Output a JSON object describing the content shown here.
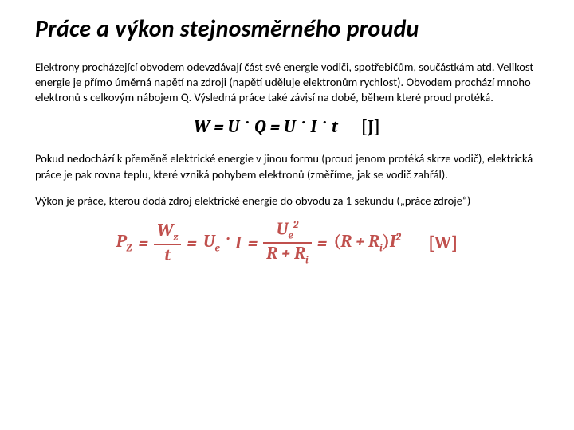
{
  "title": "Práce a výkon stejnosměrného proudu",
  "p1": "Elektrony procházející obvodem odevzdávají část své energie vodiči, spotřebičům, součástkám atd. Velikost energie je přímo úměrná napětí na zdroji (napětí uděluje elektronům rychlost). Obvodem prochází mnoho elektronů s celkovým nábojem Q. Výsledná práce také závisí na době, během které proud protéká.",
  "eq1": {
    "W": "W",
    "eq": "=",
    "U": "U",
    "dot": "·",
    "Q": "Q",
    "I": "I",
    "t": "t",
    "unit": "[J]"
  },
  "p2": "Pokud nedochází k přeměně elektrické energie v jinou formu (proud jenom protéká skrze vodič), elektrická práce je pak rovna teplu, které vzniká pohybem elektronů (změříme, jak se vodič zahřál).",
  "p3": "Výkon je práce, kterou dodá zdroj elektrické energie do obvodu za 1 sekundu („práce zdroje“)",
  "eq2": {
    "P": "P",
    "Z": "Z",
    "eq": "=",
    "Wz": "W",
    "z": "z",
    "t": "t",
    "Ue": "U",
    "e": "e",
    "dot": "·",
    "I": "I",
    "two": "2",
    "R": "R",
    "plus": "+",
    "Ri": "R",
    "i": "i",
    "lp": "(",
    "rp": ")",
    "unit": "[W]"
  },
  "style": {
    "title_color": "#000000",
    "title_fontsize": 30,
    "body_fontsize": 14.5,
    "eq_color": "#c0504d",
    "eq_fontsize": 22,
    "background": "#ffffff"
  }
}
